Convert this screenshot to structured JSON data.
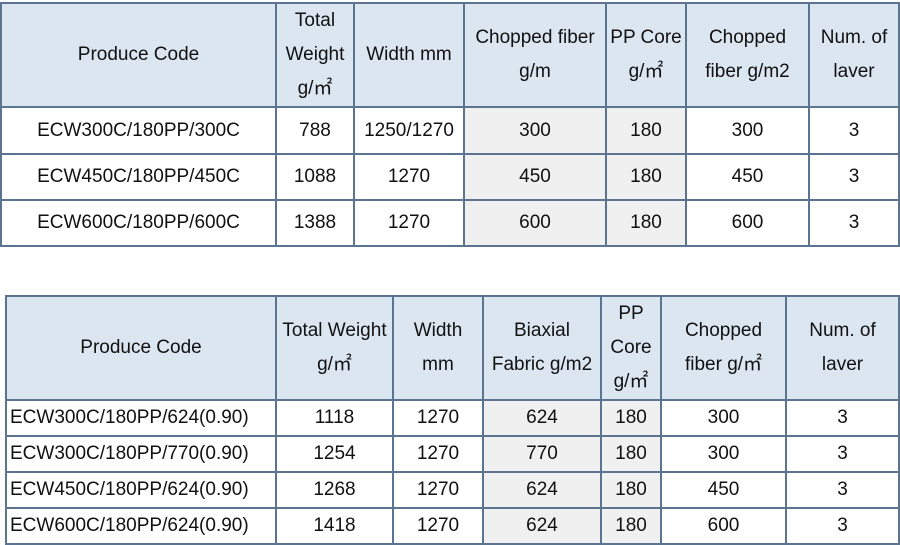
{
  "tables": [
    {
      "header": [
        "Produce Code",
        "Total Weight g/㎡",
        "Width mm",
        "Chopped fiber g/m",
        "PP Core g/㎡",
        "Chopped fiber g/m2",
        "Num. of laver"
      ],
      "rows": [
        [
          "ECW300C/180PP/300C",
          788,
          "1250/1270",
          300,
          180,
          300,
          3
        ],
        [
          "ECW450C/180PP/450C",
          1088,
          1270,
          450,
          180,
          450,
          3
        ],
        [
          "ECW600C/180PP/600C",
          1388,
          1270,
          600,
          180,
          600,
          3
        ]
      ]
    },
    {
      "header": [
        "Produce Code",
        "Total Weight g/㎡",
        "Width mm",
        "Biaxial Fabric g/m2",
        "PP Core g/㎡",
        "Chopped fiber g/㎡",
        "Num. of laver"
      ],
      "rows": [
        [
          "ECW300C/180PP/624(0.90)",
          1118,
          1270,
          624,
          180,
          300,
          3
        ],
        [
          "ECW300C/180PP/770(0.90)",
          1254,
          1270,
          770,
          180,
          300,
          3
        ],
        [
          "ECW450C/180PP/624(0.90)",
          1268,
          1270,
          624,
          180,
          450,
          3
        ],
        [
          "ECW600C/180PP/624(0.90)",
          1418,
          1270,
          624,
          180,
          600,
          3
        ]
      ]
    }
  ]
}
